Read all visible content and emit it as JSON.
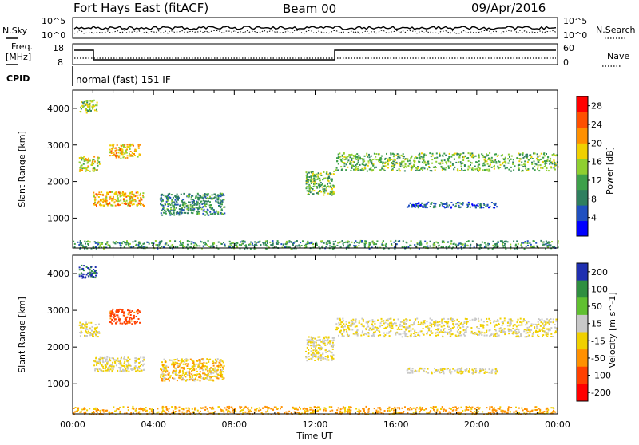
{
  "header": {
    "site": "Fort Hays East (fitACF)",
    "beam": "Beam 00",
    "date": "09/Apr/2016"
  },
  "top_panel": {
    "left_label": "N.Sky",
    "right_label": "N.Search",
    "left_ticks": [
      "10^5",
      "10^0"
    ],
    "right_ticks": [
      "10^5",
      "10^0"
    ]
  },
  "freq_panel": {
    "left_label_1": "Freq.",
    "left_label_2": "[MHz]",
    "right_label": "Nave",
    "left_ticks": [
      "18",
      "8"
    ],
    "right_ticks": [
      "60",
      "0"
    ]
  },
  "cpid": {
    "label": "CPID",
    "value": "normal (fast) 151 IF"
  },
  "colors": {
    "power": [
      "#0000ff",
      "#2050c0",
      "#2f7f5f",
      "#3da04a",
      "#8fcf30",
      "#f0d000",
      "#ff9000",
      "#ff5000",
      "#ff0000"
    ],
    "velocity": [
      "#1f2fb0",
      "#2f8f40",
      "#60c030",
      "#c8c8c8",
      "#f0d000",
      "#ff9000",
      "#ff4000",
      "#ff0000"
    ]
  },
  "chart_data": [
    {
      "type": "heatmap",
      "title": "",
      "xlabel": "Time UT",
      "ylabel": "Slant Range [km]",
      "x_ticks": [
        "00:00",
        "04:00",
        "08:00",
        "12:00",
        "16:00",
        "20:00",
        "00:00"
      ],
      "y_ticks": [
        1000,
        2000,
        3000,
        4000
      ],
      "xlim_hours": [
        0,
        24
      ],
      "ylim_km": [
        180,
        4500
      ],
      "colorbar": {
        "label": "Power [dB]",
        "ticks": [
          4,
          8,
          12,
          16,
          20,
          24,
          28
        ],
        "range": [
          0,
          30
        ]
      },
      "echo_regions": [
        {
          "t0": 0.3,
          "t1": 1.2,
          "r0": 3900,
          "r1": 4250,
          "v": 14
        },
        {
          "t0": 0.3,
          "t1": 1.3,
          "r0": 2300,
          "r1": 2700,
          "v": 17
        },
        {
          "t0": 1.0,
          "t1": 3.5,
          "r0": 1350,
          "r1": 1750,
          "v": 20
        },
        {
          "t0": 1.8,
          "t1": 3.3,
          "r0": 2650,
          "r1": 3050,
          "v": 19
        },
        {
          "t0": 4.3,
          "t1": 7.5,
          "r0": 1100,
          "r1": 1700,
          "v": 9
        },
        {
          "t0": 11.5,
          "t1": 12.9,
          "r0": 1650,
          "r1": 2300,
          "v": 13
        },
        {
          "t0": 13.0,
          "t1": 24.0,
          "r0": 2300,
          "r1": 2800,
          "v": 13
        },
        {
          "t0": 16.5,
          "t1": 21.0,
          "r0": 1300,
          "r1": 1450,
          "v": 6
        },
        {
          "t0": 0.0,
          "t1": 24.0,
          "r0": 180,
          "r1": 400,
          "v": 10
        }
      ]
    },
    {
      "type": "heatmap",
      "title": "",
      "xlabel": "Time UT",
      "ylabel": "Slant Range [km]",
      "x_ticks": [
        "00:00",
        "04:00",
        "08:00",
        "12:00",
        "16:00",
        "20:00",
        "00:00"
      ],
      "y_ticks": [
        1000,
        2000,
        3000,
        4000
      ],
      "xlim_hours": [
        0,
        24
      ],
      "ylim_km": [
        180,
        4500
      ],
      "colorbar": {
        "label": "Velocity [m s^-1]",
        "ticks": [
          200,
          100,
          50,
          15,
          -15,
          -50,
          -100,
          -200
        ]
      },
      "echo_regions": [
        {
          "t0": 0.3,
          "t1": 1.2,
          "r0": 3900,
          "r1": 4250,
          "v": 150
        },
        {
          "t0": 0.3,
          "t1": 1.3,
          "r0": 2300,
          "r1": 2700,
          "v": 0
        },
        {
          "t0": 1.0,
          "t1": 3.5,
          "r0": 1350,
          "r1": 1750,
          "v": 0
        },
        {
          "t0": 1.8,
          "t1": 3.3,
          "r0": 2650,
          "r1": 3050,
          "v": -100
        },
        {
          "t0": 4.3,
          "t1": 7.5,
          "r0": 1100,
          "r1": 1700,
          "v": -20
        },
        {
          "t0": 11.5,
          "t1": 12.9,
          "r0": 1650,
          "r1": 2300,
          "v": 0
        },
        {
          "t0": 13.0,
          "t1": 24.0,
          "r0": 2300,
          "r1": 2800,
          "v": 0
        },
        {
          "t0": 16.5,
          "t1": 21.0,
          "r0": 1300,
          "r1": 1450,
          "v": 0
        },
        {
          "t0": 0.0,
          "t1": 24.0,
          "r0": 180,
          "r1": 400,
          "v": -40
        }
      ]
    }
  ]
}
